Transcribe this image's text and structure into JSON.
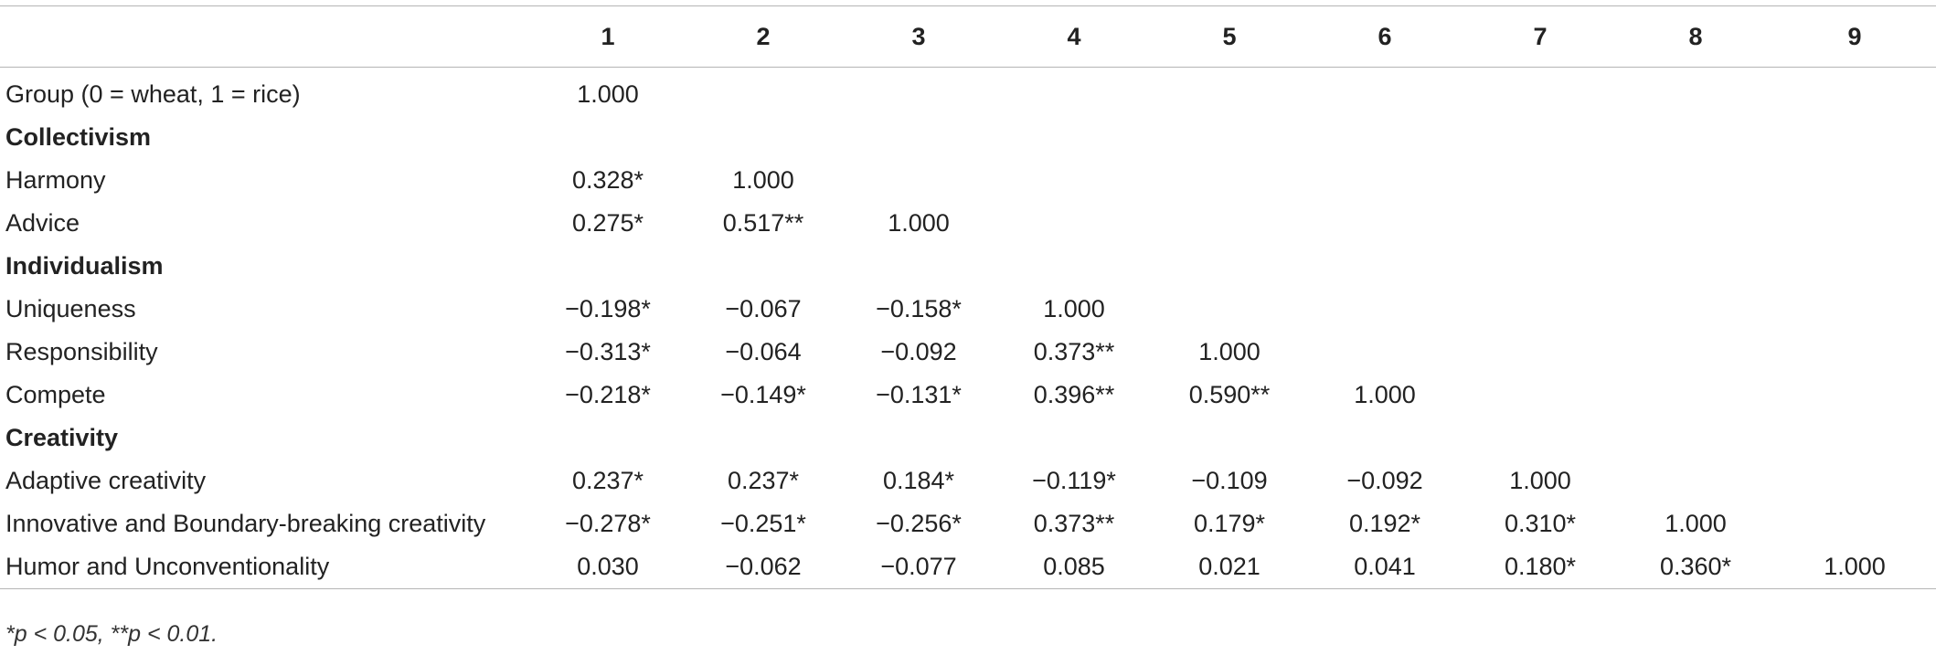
{
  "table": {
    "columns": [
      "",
      "1",
      "2",
      "3",
      "4",
      "5",
      "6",
      "7",
      "8",
      "9"
    ],
    "rows": [
      {
        "type": "data",
        "label": "Group (0 = wheat, 1 = rice)",
        "values": [
          "1.000",
          "",
          "",
          "",
          "",
          "",
          "",
          "",
          ""
        ]
      },
      {
        "type": "section",
        "label": "Collectivism",
        "values": [
          "",
          "",
          "",
          "",
          "",
          "",
          "",
          "",
          ""
        ]
      },
      {
        "type": "data",
        "label": "Harmony",
        "values": [
          "0.328*",
          "1.000",
          "",
          "",
          "",
          "",
          "",
          "",
          ""
        ]
      },
      {
        "type": "data",
        "label": "Advice",
        "values": [
          "0.275*",
          "0.517**",
          "1.000",
          "",
          "",
          "",
          "",
          "",
          ""
        ]
      },
      {
        "type": "section",
        "label": "Individualism",
        "values": [
          "",
          "",
          "",
          "",
          "",
          "",
          "",
          "",
          ""
        ]
      },
      {
        "type": "data",
        "label": "Uniqueness",
        "values": [
          "−0.198*",
          "−0.067",
          "−0.158*",
          "1.000",
          "",
          "",
          "",
          "",
          ""
        ]
      },
      {
        "type": "data",
        "label": "Responsibility",
        "values": [
          "−0.313*",
          "−0.064",
          "−0.092",
          "0.373**",
          "1.000",
          "",
          "",
          "",
          ""
        ]
      },
      {
        "type": "data",
        "label": "Compete",
        "values": [
          "−0.218*",
          "−0.149*",
          "−0.131*",
          "0.396**",
          "0.590**",
          "1.000",
          "",
          "",
          ""
        ]
      },
      {
        "type": "section",
        "label": "Creativity",
        "values": [
          "",
          "",
          "",
          "",
          "",
          "",
          "",
          "",
          ""
        ]
      },
      {
        "type": "data",
        "label": "Adaptive creativity",
        "values": [
          "0.237*",
          "0.237*",
          "0.184*",
          "−0.119*",
          "−0.109",
          "−0.092",
          "1.000",
          "",
          ""
        ]
      },
      {
        "type": "data",
        "label": "Innovative and Boundary-breaking creativity",
        "values": [
          "−0.278*",
          "−0.251*",
          "−0.256*",
          "0.373**",
          "0.179*",
          "0.192*",
          "0.310*",
          "1.000",
          ""
        ]
      },
      {
        "type": "data",
        "label": "Humor and Unconventionality",
        "values": [
          "0.030",
          "−0.062",
          "−0.077",
          "0.085",
          "0.021",
          "0.041",
          "0.180*",
          "0.360*",
          "1.000"
        ]
      }
    ]
  },
  "footnote": "*p < 0.05, **p < 0.01."
}
